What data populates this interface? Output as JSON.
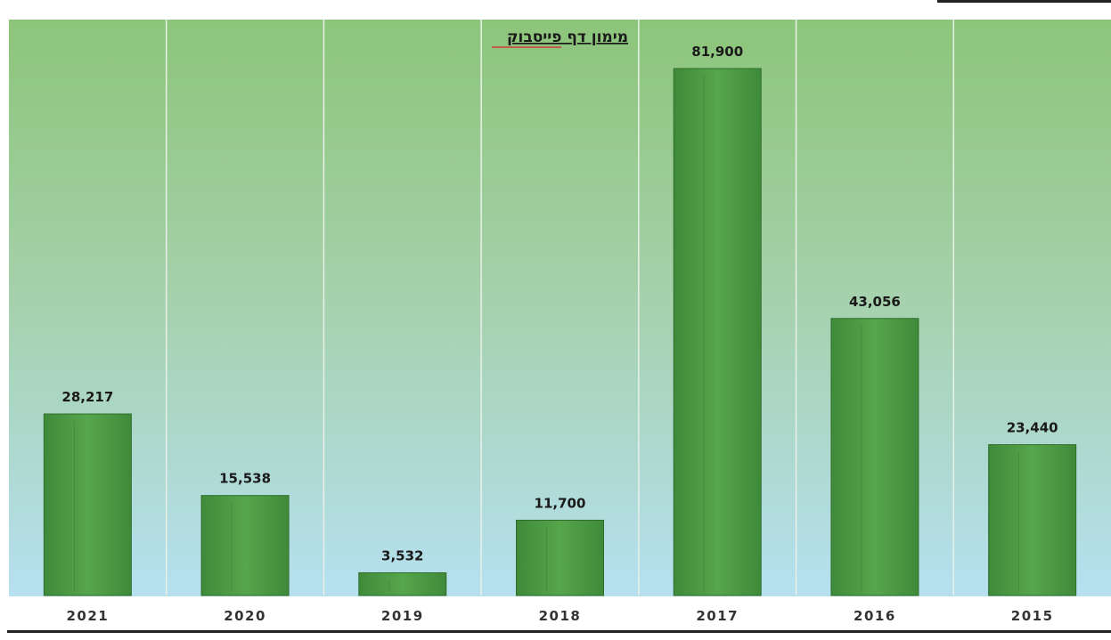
{
  "chart_data": {
    "type": "bar",
    "title": "מימון דף פייסבוק",
    "categories": [
      "2021",
      "2020",
      "2019",
      "2018",
      "2017",
      "2016",
      "2015"
    ],
    "values": [
      28217,
      15538,
      3532,
      11700,
      81900,
      43056,
      23440
    ],
    "value_labels": [
      "28,217",
      "15,538",
      "3,532",
      "11,700",
      "81,900",
      "43,056",
      "23,440"
    ],
    "xlabel": "",
    "ylabel": "",
    "ylim": [
      0,
      86000
    ],
    "grid": "vertical",
    "legend": "none",
    "colors": {
      "bar": "#4e9a45",
      "bar_edge": "#2f6e2b",
      "background_top": "#8cc57a",
      "background_bottom": "#b6e0f0",
      "gridline": "#e8f0e8",
      "label_text": "#1a1a1a",
      "title_underline_accent": "#d43a3a"
    }
  }
}
